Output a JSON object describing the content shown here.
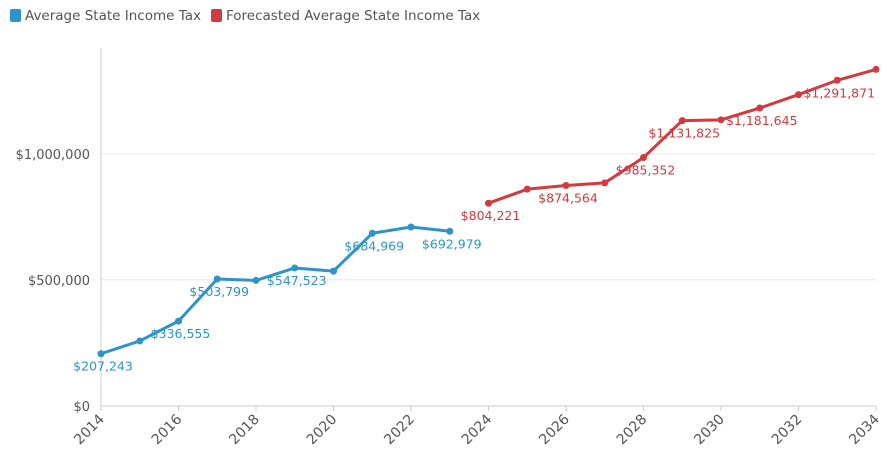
{
  "chart_data": {
    "type": "line",
    "x": [
      2014,
      2015,
      2016,
      2017,
      2018,
      2019,
      2020,
      2021,
      2022,
      2023,
      2024,
      2025,
      2026,
      2027,
      2028,
      2029,
      2030,
      2031,
      2032,
      2033,
      2034
    ],
    "series": [
      {
        "name": "Average State Income Tax",
        "color": "#2e93c9",
        "values": [
          207243,
          258000,
          336555,
          503799,
          498000,
          547523,
          535000,
          684969,
          710000,
          692979,
          null,
          null,
          null,
          null,
          null,
          null,
          null,
          null,
          null,
          null,
          null
        ],
        "value_labels": [
          "$207,243",
          null,
          "$336,555",
          "$503,799",
          null,
          "$547,523",
          null,
          "$684,969",
          null,
          "$692,979",
          null,
          null,
          null,
          null,
          null,
          null,
          null,
          null,
          null,
          null,
          null
        ]
      },
      {
        "name": "Forecasted Average State Income Tax",
        "color": "#d13a3f",
        "values": [
          null,
          null,
          null,
          null,
          null,
          null,
          null,
          null,
          null,
          null,
          804221,
          860000,
          874564,
          885000,
          985352,
          1131825,
          1135000,
          1181645,
          1235000,
          1291871,
          1335000
        ],
        "value_labels": [
          null,
          null,
          null,
          null,
          null,
          null,
          null,
          null,
          null,
          null,
          "$804,221",
          null,
          "$874,564",
          null,
          "$985,352",
          "$1,131,825",
          null,
          "$1,181,645",
          null,
          "$1,291,871",
          null
        ]
      }
    ],
    "xlim": [
      2014,
      2034
    ],
    "xticks": [
      2014,
      2016,
      2018,
      2020,
      2022,
      2024,
      2026,
      2028,
      2030,
      2032,
      2034
    ],
    "ylim": [
      0,
      1400000
    ],
    "yticks": [
      {
        "value": 0,
        "label": "$0"
      },
      {
        "value": 500000,
        "label": "$500,000"
      },
      {
        "value": 1000000,
        "label": "$1,000,000"
      }
    ],
    "grid": true
  }
}
